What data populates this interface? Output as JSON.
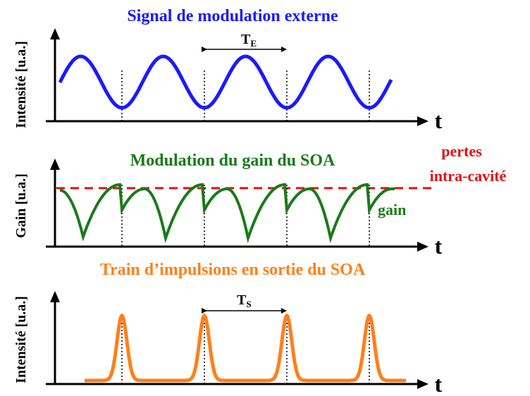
{
  "panels": [
    {
      "title": "Signal de modulation externe",
      "y_label": "Intensité [u.a.]",
      "x_label": "t",
      "period_label": "T",
      "period_sub": "E"
    },
    {
      "title": "Modulation du gain du SOA",
      "y_label": "Gain [u.a.]",
      "x_label": "t",
      "curve_label": "gain",
      "loss_label_1": "pertes",
      "loss_label_2": "intra-cavité"
    },
    {
      "title": "Train d’impulsions en sortie du SOA",
      "y_label": "Intensité [u.a.]",
      "x_label": "t",
      "period_label": "T",
      "period_sub": "S"
    }
  ]
}
